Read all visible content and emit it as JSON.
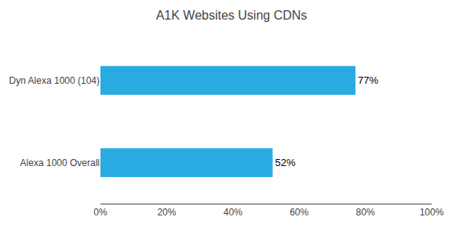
{
  "chart_data": {
    "type": "bar",
    "orientation": "horizontal",
    "title": "A1K Websites Using CDNs",
    "categories": [
      "Alexa 1000 Overall",
      "Dyn Alexa 1000 (104)"
    ],
    "values": [
      52,
      77
    ],
    "value_labels": [
      "52%",
      "77%"
    ],
    "data_labels": true,
    "color": "#29ABE2",
    "xlim": [
      0,
      100
    ],
    "xticks": [
      {
        "value": 0,
        "label": "0%"
      },
      {
        "value": 20,
        "label": "20%"
      },
      {
        "value": 40,
        "label": "40%"
      },
      {
        "value": 60,
        "label": "60%"
      },
      {
        "value": 80,
        "label": "80%"
      },
      {
        "value": 100,
        "label": "100%"
      }
    ],
    "grid": false
  }
}
